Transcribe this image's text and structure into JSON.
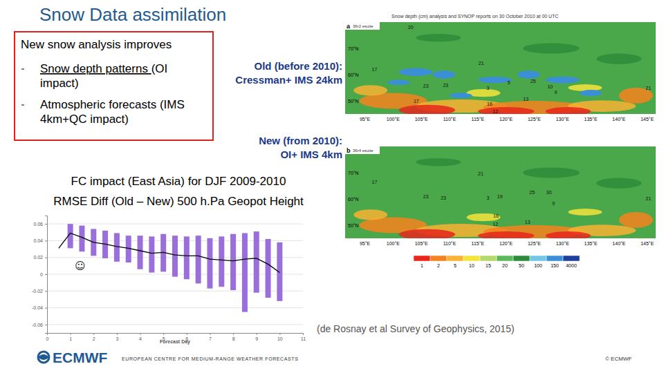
{
  "slide": {
    "title": "Snow Data assimilation",
    "box_title": "New snow analysis improves",
    "bullets": [
      [
        [
          {
            "text": "Snow depth patterns ",
            "underline": true
          },
          {
            "text": "(OI",
            "underline": false
          }
        ],
        [
          {
            "text": "impact)",
            "underline": false
          }
        ]
      ],
      [
        [
          {
            "text": "Atmospheric forecasts (IMS",
            "underline": false
          }
        ],
        [
          {
            "text": "4km+QC impact)",
            "underline": false
          }
        ]
      ]
    ],
    "run_labels": [
      {
        "lines": [
          "Old (before 2010):",
          "Cressman+ IMS 24km"
        ]
      },
      {
        "lines": [
          "New (from 2010):",
          "OI+ IMS 4km"
        ]
      }
    ],
    "citation": "(de Rosnay et al Survey of Geophysics, 2015)",
    "logo": "ECMWF",
    "footer": "EUROPEAN CENTRE FOR MEDIUM-RANGE WEATHER FORECASTS",
    "copyright": "© ECMWF"
  },
  "maps": {
    "title": "Snow depth (cm) analysis and SYNOP reports on 30 October 2010 at 00 UTC",
    "lon_range": [
      91.5,
      146.5
    ],
    "lat_range": [
      80,
      45
    ],
    "lon_ticks": [
      {
        "value": 95,
        "label": "95°E"
      },
      {
        "value": 100,
        "label": "100°E"
      },
      {
        "value": 105,
        "label": "105°E"
      },
      {
        "value": 110,
        "label": "110°E"
      },
      {
        "value": 115,
        "label": "115°E"
      },
      {
        "value": 120,
        "label": "120°E"
      },
      {
        "value": 125,
        "label": "125°E"
      },
      {
        "value": 130,
        "label": "130°E"
      },
      {
        "value": 135,
        "label": "135°E"
      },
      {
        "value": 140,
        "label": "140°E"
      },
      {
        "value": 145,
        "label": "145°E"
      }
    ],
    "lat_ticks": [
      {
        "value": 70,
        "label": "70°N"
      },
      {
        "value": 60,
        "label": "60°N"
      },
      {
        "value": 50,
        "label": "50°N"
      }
    ],
    "panels": [
      {
        "label": "a",
        "run": "36r2 esuite",
        "reports": [
          {
            "lon": 103.1,
            "lat": 78.2,
            "value": 20
          },
          {
            "lon": 96.7,
            "lat": 62.2,
            "value": 17
          },
          {
            "lon": 115.6,
            "lat": 64.6,
            "value": 21
          },
          {
            "lon": 105.8,
            "lat": 55.9,
            "value": 23
          },
          {
            "lon": 109.3,
            "lat": 56.1,
            "value": 23
          },
          {
            "lon": 116.8,
            "lat": 55.1,
            "value": 3
          },
          {
            "lon": 124.8,
            "lat": 57.7,
            "value": 25
          },
          {
            "lon": 127.8,
            "lat": 55.4,
            "value": 10
          },
          {
            "lon": 128.8,
            "lat": 53.3,
            "value": 9
          },
          {
            "lon": 145.2,
            "lat": 55.1,
            "value": 21
          },
          {
            "lon": 117.1,
            "lat": 49.0,
            "value": 16
          },
          {
            "lon": 104.1,
            "lat": 50.0,
            "value": 17
          },
          {
            "lon": 118.1,
            "lat": 46.0,
            "value": 12
          },
          {
            "lon": 123.5,
            "lat": 50.8,
            "value": 13
          },
          {
            "lon": 120.5,
            "lat": 57.2,
            "value": 5
          }
        ]
      },
      {
        "label": "b",
        "run": "36r4 esuite",
        "reports": [
          {
            "lon": 96.7,
            "lat": 66.5,
            "value": 17
          },
          {
            "lon": 115.5,
            "lat": 69.8,
            "value": 21
          },
          {
            "lon": 124.6,
            "lat": 62.7,
            "value": 25
          },
          {
            "lon": 127.6,
            "lat": 62.7,
            "value": 30
          },
          {
            "lon": 105.8,
            "lat": 61.0,
            "value": 23
          },
          {
            "lon": 108.9,
            "lat": 60.5,
            "value": 23
          },
          {
            "lon": 116.8,
            "lat": 60.5,
            "value": 3
          },
          {
            "lon": 123.8,
            "lat": 51.3,
            "value": 13
          },
          {
            "lon": 118.2,
            "lat": 53.6,
            "value": 16
          },
          {
            "lon": 118.1,
            "lat": 50.6,
            "value": 12
          },
          {
            "lon": 145.2,
            "lat": 60.2,
            "value": 21
          },
          {
            "lon": 118.9,
            "lat": 61.0,
            "value": 19
          },
          {
            "lon": 128.4,
            "lat": 58.4,
            "value": 9
          }
        ]
      }
    ],
    "colorbar": {
      "ticks": [
        1,
        2,
        5,
        10,
        15,
        20,
        50,
        100,
        150,
        4000
      ],
      "colors": [
        "#e8261c",
        "#f5821f",
        "#f9b233",
        "#f5e43c",
        "#b5d96a",
        "#5cb85c",
        "#2e8b3a",
        "#74c6e8",
        "#3a8fd6",
        "#1f3f9f"
      ]
    }
  },
  "chart_data": {
    "type": "bar",
    "title": "FC impact (East Asia) for DJF 2009-2010",
    "subtitle": "RMSE Diff (Old – New) 500 h.Pa Geopot Height",
    "x_label": "Forecast Day",
    "annotations": [
      "☺"
    ],
    "xlim": [
      0,
      11
    ],
    "xticks": [
      0,
      1,
      2,
      3,
      4,
      5,
      6,
      7,
      8,
      9,
      10,
      11
    ],
    "ylim": [
      -0.07,
      0.07
    ],
    "yticks": [
      -0.06,
      -0.04,
      -0.02,
      0,
      0.02,
      0.04,
      0.06
    ],
    "grid": true,
    "series": [
      {
        "type": "range_bar",
        "color": "#9b6fdb",
        "x": [
          1,
          1.5,
          2,
          2.5,
          3,
          3.5,
          4,
          4.5,
          5,
          5.5,
          6,
          6.5,
          7,
          7.5,
          8,
          8.5,
          9,
          9.5,
          10
        ],
        "low": [
          0.031,
          0.027,
          0.022,
          0.019,
          0.015,
          0.014,
          0.006,
          0.002,
          0.003,
          -0.003,
          -0.006,
          -0.011,
          -0.017,
          -0.015,
          -0.019,
          -0.045,
          -0.022,
          -0.028,
          -0.032
        ],
        "high": [
          0.06,
          0.058,
          0.054,
          0.052,
          0.049,
          0.046,
          0.046,
          0.045,
          0.048,
          0.046,
          0.045,
          0.046,
          0.043,
          0.045,
          0.048,
          0.049,
          0.051,
          0.042,
          0.038
        ]
      },
      {
        "type": "line",
        "color": "#000000",
        "x": [
          0.5,
          1,
          1.5,
          2,
          2.5,
          3,
          3.5,
          4,
          4.5,
          5,
          5.5,
          6,
          6.5,
          7,
          7.5,
          8,
          8.5,
          9,
          9.5,
          10
        ],
        "values": [
          0.031,
          0.049,
          0.044,
          0.038,
          0.036,
          0.033,
          0.031,
          0.028,
          0.025,
          0.026,
          0.023,
          0.022,
          0.022,
          0.018,
          0.017,
          0.016,
          0.018,
          0.019,
          0.012,
          0.002
        ]
      }
    ]
  }
}
